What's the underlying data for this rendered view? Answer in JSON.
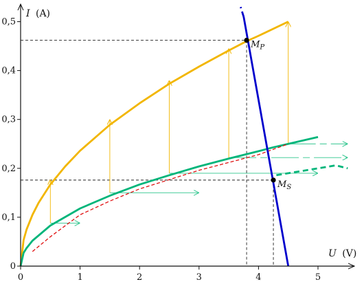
{
  "chart_data": {
    "type": "line",
    "x_axis": {
      "quantity": "U",
      "unit": "(V)",
      "ticks": [
        0,
        1,
        2,
        3,
        4,
        5
      ],
      "tick_labels": [
        "0",
        "1",
        "2",
        "3",
        "4",
        "5"
      ],
      "range": [
        0,
        5.5
      ]
    },
    "y_axis": {
      "quantity": "I",
      "unit": "(A)",
      "ticks": [
        0,
        0.1,
        0.2,
        0.3,
        0.4,
        0.5
      ],
      "tick_labels": [
        "0",
        "0,1",
        "0,2",
        "0,3",
        "0,4",
        "0,5"
      ],
      "range": [
        0,
        0.54
      ]
    },
    "grid": false,
    "legend": "none",
    "series": [
      {
        "color": "#f2b600",
        "style": "solid",
        "x": [
          0,
          0.05,
          0.1,
          0.2,
          0.3,
          0.5,
          0.75,
          1.0,
          1.5,
          2.0,
          2.5,
          3.0,
          3.5,
          3.8,
          4.0,
          4.5
        ],
        "y": [
          0,
          0.053,
          0.075,
          0.105,
          0.129,
          0.167,
          0.204,
          0.236,
          0.289,
          0.333,
          0.373,
          0.408,
          0.441,
          0.46,
          0.471,
          0.5
        ]
      },
      {
        "color": "#00b57a",
        "style": "solid",
        "x": [
          0,
          0.05,
          0.1,
          0.2,
          0.5,
          1.0,
          1.5,
          2.0,
          2.5,
          3.0,
          3.5,
          4.0,
          4.25,
          4.5,
          5.0
        ],
        "y": [
          0,
          0.027,
          0.037,
          0.052,
          0.083,
          0.118,
          0.144,
          0.167,
          0.186,
          0.204,
          0.22,
          0.235,
          0.243,
          0.25,
          0.264
        ]
      },
      {
        "color": "#00b57a",
        "style": "dashed",
        "x": [
          4.3,
          4.5,
          4.7,
          4.9,
          5.1,
          5.3,
          5.5
        ],
        "y": [
          0.186,
          0.19,
          0.194,
          0.198,
          0.202,
          0.206,
          0.2
        ]
      },
      {
        "color": "#e01010",
        "style": "dashed",
        "x": [
          0.2,
          0.5,
          1.0,
          1.5,
          2.0,
          2.5,
          3.0,
          3.5,
          4.0,
          4.5
        ],
        "y": [
          0.03,
          0.06,
          0.105,
          0.133,
          0.158,
          0.177,
          0.196,
          0.212,
          0.228,
          0.25
        ]
      },
      {
        "color": "#0000cc",
        "style": "solid",
        "x": [
          3.75,
          4.5
        ],
        "y": [
          0.51,
          0.0
        ]
      },
      {
        "color": "#0000cc",
        "style": "dashed",
        "x": [
          3.75,
          3.7
        ],
        "y": [
          0.51,
          0.53
        ]
      }
    ],
    "transfer_arrows": {
      "vertical": [
        {
          "x": 0.5,
          "from": 0.088,
          "to": 0.177
        },
        {
          "x": 1.5,
          "from": 0.15,
          "to": 0.3
        },
        {
          "x": 2.5,
          "from": 0.19,
          "to": 0.38
        },
        {
          "x": 3.5,
          "from": 0.222,
          "to": 0.445
        },
        {
          "x": 4.5,
          "from": 0.25,
          "to": 0.5
        }
      ],
      "horizontal": [
        {
          "y": 0.088,
          "from": 0.5,
          "to": 1.0
        },
        {
          "y": 0.15,
          "from": 1.5,
          "to": 3.0
        },
        {
          "y": 0.19,
          "from": 2.5,
          "to": 5.0
        },
        {
          "y": 0.222,
          "from": 3.5,
          "to": 5.5
        },
        {
          "y": 0.25,
          "from": 4.5,
          "to": 5.5
        }
      ]
    },
    "points": [
      {
        "label": "M",
        "subscript": "P",
        "x": 3.8,
        "y": 0.462
      },
      {
        "label": "M",
        "subscript": "S",
        "x": 4.25,
        "y": 0.176
      }
    ],
    "guide_lines": [
      {
        "x": 3.8,
        "y": 0.462
      },
      {
        "x": 4.25,
        "y": 0.176
      }
    ]
  }
}
